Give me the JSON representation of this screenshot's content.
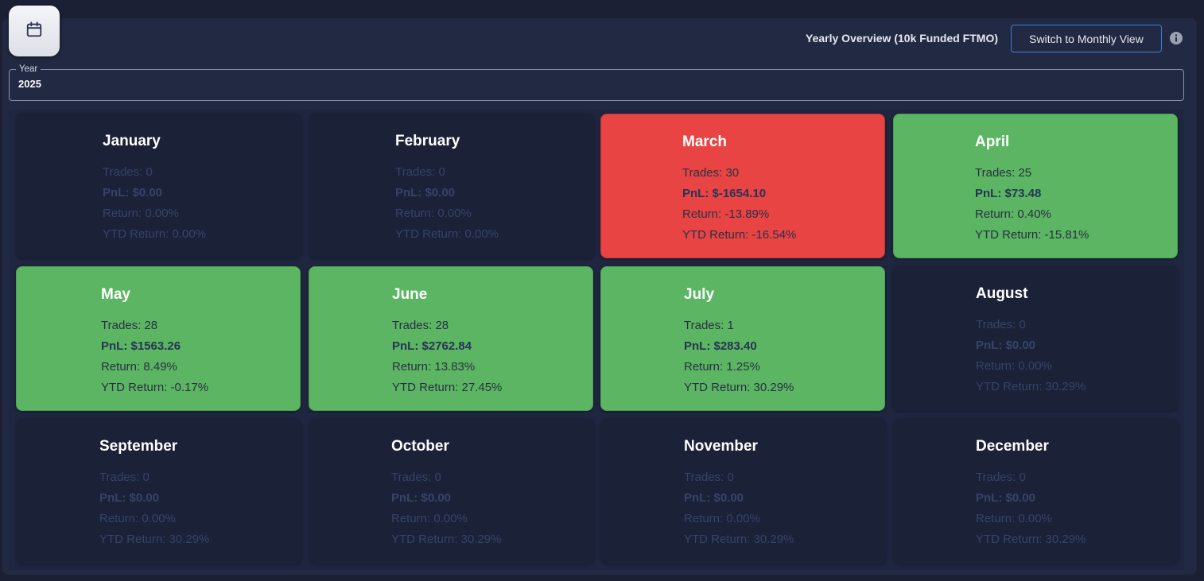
{
  "header": {
    "title": "Yearly Overview (10k Funded FTMO)",
    "switch_label": "Switch to Monthly View",
    "calendar_icon": "calendar-icon",
    "info_icon": "info-icon"
  },
  "year_field": {
    "label": "Year",
    "value": "2025"
  },
  "colors": {
    "loss": "#e84444",
    "gain": "#5cb562",
    "empty": "#1b2136",
    "accent": "#3b7fd6"
  },
  "months": [
    {
      "name": "January",
      "status": "empty",
      "trades": "Trades: 0",
      "pnl": "PnL: $0.00",
      "ret": "Return: 0.00%",
      "ytd": "YTD Return: 0.00%"
    },
    {
      "name": "February",
      "status": "empty",
      "trades": "Trades: 0",
      "pnl": "PnL: $0.00",
      "ret": "Return: 0.00%",
      "ytd": "YTD Return: 0.00%"
    },
    {
      "name": "March",
      "status": "loss",
      "trades": "Trades: 30",
      "pnl": "PnL: $-1654.10",
      "ret": "Return: -13.89%",
      "ytd": "YTD Return: -16.54%"
    },
    {
      "name": "April",
      "status": "gain",
      "trades": "Trades: 25",
      "pnl": "PnL: $73.48",
      "ret": "Return: 0.40%",
      "ytd": "YTD Return: -15.81%"
    },
    {
      "name": "May",
      "status": "gain",
      "trades": "Trades: 28",
      "pnl": "PnL: $1563.26",
      "ret": "Return: 8.49%",
      "ytd": "YTD Return: -0.17%"
    },
    {
      "name": "June",
      "status": "gain",
      "trades": "Trades: 28",
      "pnl": "PnL: $2762.84",
      "ret": "Return: 13.83%",
      "ytd": "YTD Return: 27.45%"
    },
    {
      "name": "July",
      "status": "gain",
      "trades": "Trades: 1",
      "pnl": "PnL: $283.40",
      "ret": "Return: 1.25%",
      "ytd": "YTD Return: 30.29%"
    },
    {
      "name": "August",
      "status": "empty",
      "trades": "Trades: 0",
      "pnl": "PnL: $0.00",
      "ret": "Return: 0.00%",
      "ytd": "YTD Return: 30.29%"
    },
    {
      "name": "September",
      "status": "empty",
      "trades": "Trades: 0",
      "pnl": "PnL: $0.00",
      "ret": "Return: 0.00%",
      "ytd": "YTD Return: 30.29%"
    },
    {
      "name": "October",
      "status": "empty",
      "trades": "Trades: 0",
      "pnl": "PnL: $0.00",
      "ret": "Return: 0.00%",
      "ytd": "YTD Return: 30.29%"
    },
    {
      "name": "November",
      "status": "empty",
      "trades": "Trades: 0",
      "pnl": "PnL: $0.00",
      "ret": "Return: 0.00%",
      "ytd": "YTD Return: 30.29%"
    },
    {
      "name": "December",
      "status": "empty",
      "trades": "Trades: 0",
      "pnl": "PnL: $0.00",
      "ret": "Return: 0.00%",
      "ytd": "YTD Return: 30.29%"
    }
  ]
}
